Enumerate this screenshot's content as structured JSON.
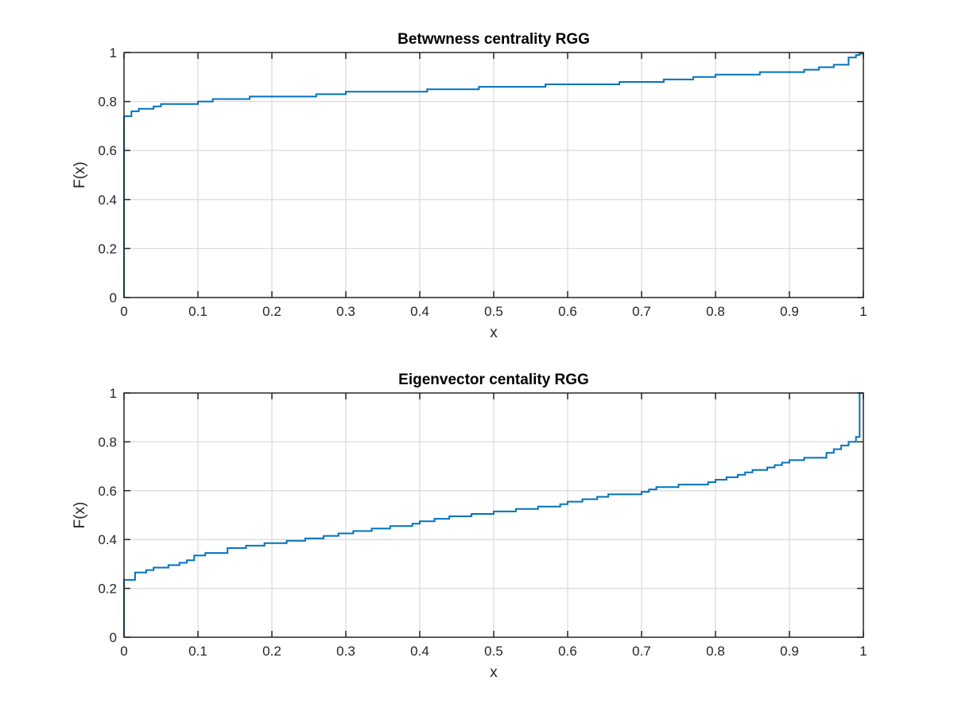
{
  "chart_data": [
    {
      "type": "line",
      "step": "post",
      "title": "Betwwness centrality RGG",
      "xlabel": "x",
      "ylabel": "F(x)",
      "xlim": [
        0,
        1
      ],
      "ylim": [
        0,
        1
      ],
      "xticks": [
        "0",
        "0.1",
        "0.2",
        "0.3",
        "0.4",
        "0.5",
        "0.6",
        "0.7",
        "0.8",
        "0.9",
        "1"
      ],
      "yticks": [
        "0",
        "0.2",
        "0.4",
        "0.6",
        "0.8",
        "1"
      ],
      "grid": true,
      "color": "#0072BD",
      "x": [
        0,
        0,
        0.01,
        0.02,
        0.04,
        0.05,
        0.1,
        0.12,
        0.17,
        0.26,
        0.3,
        0.41,
        0.48,
        0.57,
        0.67,
        0.73,
        0.77,
        0.8,
        0.86,
        0.92,
        0.94,
        0.96,
        0.98,
        0.99,
        0.995,
        1
      ],
      "y": [
        0,
        0.74,
        0.76,
        0.77,
        0.78,
        0.79,
        0.8,
        0.81,
        0.82,
        0.83,
        0.84,
        0.85,
        0.86,
        0.87,
        0.88,
        0.89,
        0.9,
        0.91,
        0.92,
        0.93,
        0.94,
        0.95,
        0.98,
        0.99,
        0.995,
        1
      ]
    },
    {
      "type": "line",
      "step": "post",
      "title": "Eigenvector centality RGG",
      "xlabel": "x",
      "ylabel": "F(x)",
      "xlim": [
        0,
        1
      ],
      "ylim": [
        0,
        1
      ],
      "xticks": [
        "0",
        "0.1",
        "0.2",
        "0.3",
        "0.4",
        "0.5",
        "0.6",
        "0.7",
        "0.8",
        "0.9",
        "1"
      ],
      "yticks": [
        "0",
        "0.2",
        "0.4",
        "0.6",
        "0.8",
        "1"
      ],
      "grid": true,
      "color": "#0072BD",
      "x": [
        0,
        0,
        0.015,
        0.03,
        0.04,
        0.06,
        0.075,
        0.085,
        0.095,
        0.11,
        0.14,
        0.165,
        0.19,
        0.22,
        0.245,
        0.27,
        0.29,
        0.31,
        0.335,
        0.36,
        0.39,
        0.4,
        0.42,
        0.44,
        0.47,
        0.5,
        0.53,
        0.56,
        0.59,
        0.6,
        0.62,
        0.64,
        0.655,
        0.7,
        0.71,
        0.72,
        0.75,
        0.79,
        0.8,
        0.815,
        0.83,
        0.84,
        0.85,
        0.87,
        0.88,
        0.89,
        0.9,
        0.92,
        0.95,
        0.96,
        0.97,
        0.98,
        0.99,
        0.995,
        1
      ],
      "y": [
        0,
        0.235,
        0.265,
        0.275,
        0.285,
        0.295,
        0.305,
        0.315,
        0.335,
        0.345,
        0.365,
        0.375,
        0.385,
        0.395,
        0.405,
        0.415,
        0.425,
        0.435,
        0.445,
        0.455,
        0.465,
        0.475,
        0.485,
        0.495,
        0.505,
        0.515,
        0.525,
        0.535,
        0.545,
        0.555,
        0.565,
        0.575,
        0.585,
        0.595,
        0.605,
        0.615,
        0.625,
        0.635,
        0.645,
        0.655,
        0.665,
        0.675,
        0.685,
        0.695,
        0.705,
        0.715,
        0.725,
        0.735,
        0.755,
        0.77,
        0.785,
        0.8,
        0.82,
        1,
        1
      ]
    }
  ]
}
